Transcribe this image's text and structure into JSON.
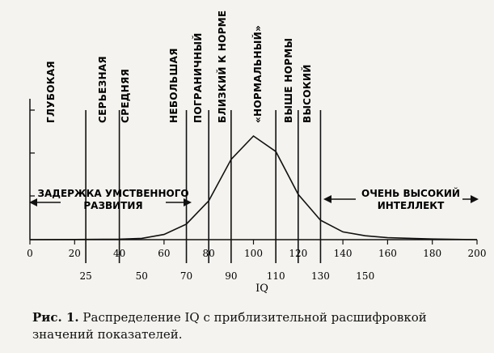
{
  "chart_data": {
    "type": "line",
    "xlabel": "IQ",
    "x_axis_upper_ticks": [
      0,
      20,
      40,
      60,
      80,
      100,
      120,
      140,
      160,
      180,
      200
    ],
    "x_axis_lower_ticks": [
      25,
      50,
      70,
      90,
      110,
      130,
      150
    ],
    "xlim": [
      0,
      200
    ],
    "series": [
      {
        "x": [
          0,
          20,
          40,
          50,
          60,
          70,
          80,
          90,
          100,
          110,
          120,
          130,
          140,
          150,
          160,
          180,
          200
        ],
        "y": [
          0,
          0.1,
          0.4,
          1,
          4,
          12,
          30,
          62,
          80,
          68,
          35,
          15,
          6,
          3,
          1.5,
          0.5,
          0
        ]
      }
    ],
    "categories": [
      {
        "label": "ГЛУБОКАЯ",
        "boundary": 25
      },
      {
        "label": "СЕРЬЕЗНАЯ",
        "boundary": 40
      },
      {
        "label": "СРЕДНЯЯ",
        "boundary": 70
      },
      {
        "label": "НЕБОЛЬШАЯ",
        "boundary": 80
      },
      {
        "label": "ПОГРАНИЧНЫЙ",
        "boundary": 90
      },
      {
        "label": "БЛИЗКИЙ К НОРМЕ",
        "boundary": 110
      },
      {
        "label": "«НОРМАЛЬНЫЙ»",
        "boundary": 120
      },
      {
        "label": "ВЫШЕ НОРМЫ",
        "boundary": 130
      },
      {
        "label": "ВЫСОКИЙ",
        "boundary": null
      }
    ],
    "bands": [
      {
        "line1": "ЗАДЕРЖКА УМСТВЕННОГО",
        "line2": "РАЗВИТИЯ",
        "direction": "left"
      },
      {
        "line1": "ОЧЕНЬ ВЫСОКИЙ",
        "line2": "ИНТЕЛЛЕКТ",
        "direction": "right"
      }
    ]
  },
  "caption": {
    "fig": "Рис. 1.",
    "text": " Распределение IQ с приблизительной расшифровкой значений показателей."
  }
}
